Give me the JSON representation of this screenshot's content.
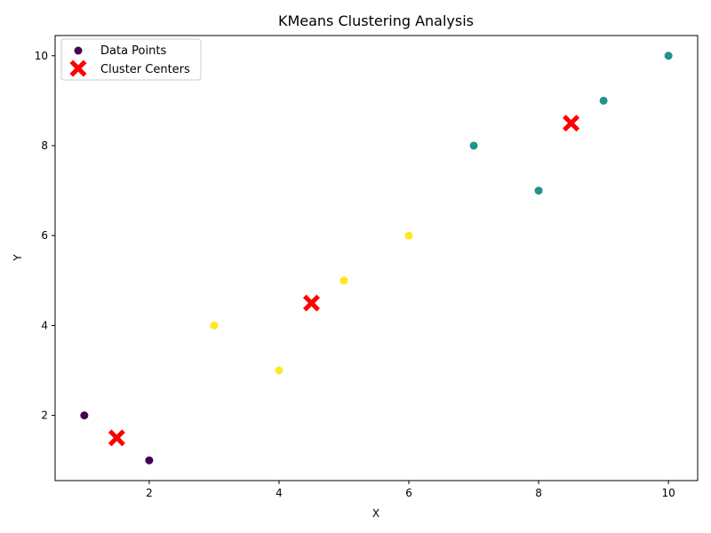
{
  "chart_data": {
    "type": "scatter",
    "title": "KMeans Clustering Analysis",
    "xlabel": "X",
    "ylabel": "Y",
    "xlim": [
      0.55,
      10.45
    ],
    "ylim": [
      0.55,
      10.45
    ],
    "xticks": [
      2,
      4,
      6,
      8,
      10
    ],
    "yticks": [
      2,
      4,
      6,
      8,
      10
    ],
    "grid": false,
    "legend_position": "upper-left",
    "cluster_colors": [
      "#440154",
      "#21918c",
      "#fde725"
    ],
    "center_color": "#ff0000",
    "series": [
      {
        "name": "Data Points",
        "marker": "circle",
        "points": [
          {
            "x": 1,
            "y": 2,
            "cluster": 0
          },
          {
            "x": 2,
            "y": 1,
            "cluster": 0
          },
          {
            "x": 3,
            "y": 4,
            "cluster": 2
          },
          {
            "x": 4,
            "y": 3,
            "cluster": 2
          },
          {
            "x": 5,
            "y": 5,
            "cluster": 2
          },
          {
            "x": 6,
            "y": 6,
            "cluster": 2
          },
          {
            "x": 7,
            "y": 8,
            "cluster": 1
          },
          {
            "x": 8,
            "y": 7,
            "cluster": 1
          },
          {
            "x": 9,
            "y": 9,
            "cluster": 1
          },
          {
            "x": 10,
            "y": 10,
            "cluster": 1
          }
        ]
      },
      {
        "name": "Cluster Centers",
        "marker": "x",
        "points": [
          {
            "x": 1.5,
            "y": 1.5
          },
          {
            "x": 4.5,
            "y": 4.5
          },
          {
            "x": 8.5,
            "y": 8.5
          }
        ]
      }
    ]
  }
}
